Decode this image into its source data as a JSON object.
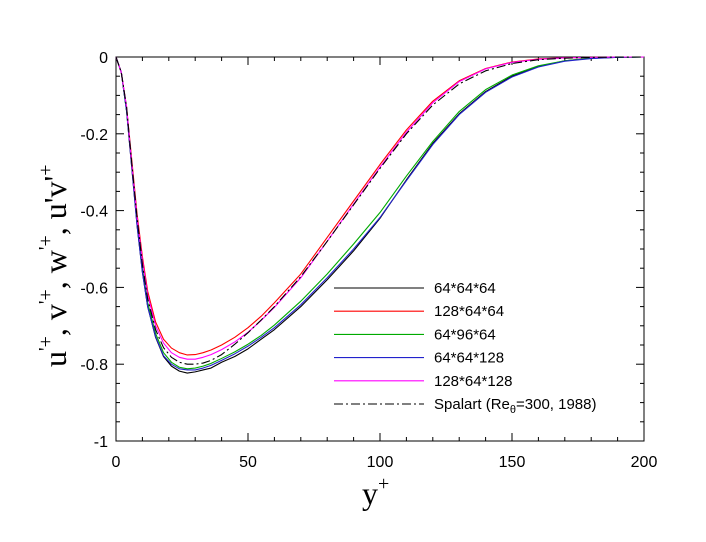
{
  "chart_data": {
    "type": "line",
    "title": "",
    "xlabel": {
      "base": "y",
      "sup": "+"
    },
    "ylabel": {
      "parts": [
        {
          "text": "u",
          "sup": "'+"
        },
        {
          "text": ", v",
          "sup": "'+"
        },
        {
          "text": ", w",
          "sup": "'+"
        },
        {
          "text": ", u'v'",
          "sup": "+"
        }
      ]
    },
    "xlim": [
      0,
      200
    ],
    "ylim": [
      -1,
      0
    ],
    "x_ticks": [
      0,
      50,
      100,
      150,
      200
    ],
    "y_ticks": [
      0,
      -0.2,
      -0.4,
      -0.6,
      -0.8,
      -1
    ],
    "x_tick_labels": [
      "0",
      "50",
      "100",
      "150",
      "200"
    ],
    "y_tick_labels": [
      "0",
      "-0.2",
      "-0.4",
      "-0.6",
      "-0.8",
      "-1"
    ],
    "grid": false,
    "legend_position": "center-right",
    "series": [
      {
        "name": "64*64*64",
        "color": "#000000",
        "dash": "solid",
        "x": [
          0,
          2,
          4,
          6,
          8,
          10,
          12,
          15,
          18,
          21,
          24,
          27,
          30,
          33,
          36,
          40,
          45,
          50,
          55,
          60,
          70,
          80,
          90,
          100,
          110,
          120,
          130,
          140,
          150,
          160,
          170,
          180,
          190,
          200
        ],
        "y": [
          0,
          -0.04,
          -0.14,
          -0.29,
          -0.44,
          -0.56,
          -0.65,
          -0.73,
          -0.78,
          -0.805,
          -0.818,
          -0.823,
          -0.82,
          -0.815,
          -0.81,
          -0.795,
          -0.78,
          -0.76,
          -0.735,
          -0.71,
          -0.65,
          -0.58,
          -0.505,
          -0.42,
          -0.32,
          -0.225,
          -0.148,
          -0.09,
          -0.05,
          -0.025,
          -0.01,
          -0.003,
          -0.001,
          0
        ]
      },
      {
        "name": "128*64*64",
        "color": "#ff0000",
        "dash": "solid",
        "x": [
          0,
          2,
          4,
          6,
          8,
          10,
          12,
          15,
          18,
          21,
          24,
          27,
          30,
          33,
          36,
          40,
          45,
          50,
          55,
          60,
          70,
          80,
          90,
          100,
          110,
          120,
          130,
          140,
          150,
          160,
          170,
          180,
          190,
          200
        ],
        "y": [
          0,
          -0.04,
          -0.13,
          -0.27,
          -0.41,
          -0.52,
          -0.61,
          -0.69,
          -0.735,
          -0.758,
          -0.77,
          -0.776,
          -0.775,
          -0.77,
          -0.763,
          -0.75,
          -0.73,
          -0.705,
          -0.675,
          -0.64,
          -0.565,
          -0.47,
          -0.375,
          -0.28,
          -0.19,
          -0.115,
          -0.062,
          -0.03,
          -0.013,
          -0.005,
          -0.002,
          -0.001,
          0,
          0
        ]
      },
      {
        "name": "64*96*64",
        "color": "#00aa00",
        "dash": "solid",
        "x": [
          0,
          2,
          4,
          6,
          8,
          10,
          12,
          15,
          18,
          21,
          24,
          27,
          30,
          33,
          36,
          40,
          45,
          50,
          55,
          60,
          70,
          80,
          90,
          100,
          110,
          120,
          130,
          140,
          150,
          160,
          170,
          180,
          190,
          200
        ],
        "y": [
          0,
          -0.04,
          -0.14,
          -0.28,
          -0.43,
          -0.55,
          -0.64,
          -0.72,
          -0.77,
          -0.795,
          -0.808,
          -0.812,
          -0.81,
          -0.805,
          -0.798,
          -0.785,
          -0.768,
          -0.748,
          -0.725,
          -0.698,
          -0.636,
          -0.565,
          -0.487,
          -0.405,
          -0.31,
          -0.22,
          -0.142,
          -0.085,
          -0.047,
          -0.023,
          -0.01,
          -0.003,
          -0.001,
          0
        ]
      },
      {
        "name": "64*64*128",
        "color": "#2222cc",
        "dash": "solid",
        "x": [
          0,
          2,
          4,
          6,
          8,
          10,
          12,
          15,
          18,
          21,
          24,
          27,
          30,
          33,
          36,
          40,
          45,
          50,
          55,
          60,
          70,
          80,
          90,
          100,
          110,
          120,
          130,
          140,
          150,
          160,
          170,
          180,
          190,
          200
        ],
        "y": [
          0,
          -0.04,
          -0.14,
          -0.29,
          -0.44,
          -0.56,
          -0.65,
          -0.728,
          -0.778,
          -0.8,
          -0.812,
          -0.815,
          -0.815,
          -0.81,
          -0.803,
          -0.79,
          -0.773,
          -0.753,
          -0.73,
          -0.705,
          -0.645,
          -0.575,
          -0.5,
          -0.418,
          -0.322,
          -0.228,
          -0.15,
          -0.092,
          -0.052,
          -0.026,
          -0.011,
          -0.004,
          -0.001,
          0
        ]
      },
      {
        "name": "128*64*128",
        "color": "#ff00ff",
        "dash": "solid",
        "x": [
          0,
          2,
          4,
          6,
          8,
          10,
          12,
          15,
          18,
          21,
          24,
          27,
          30,
          33,
          36,
          40,
          45,
          50,
          55,
          60,
          70,
          80,
          90,
          100,
          110,
          120,
          130,
          140,
          150,
          160,
          170,
          180,
          190,
          200
        ],
        "y": [
          0,
          -0.04,
          -0.13,
          -0.28,
          -0.42,
          -0.53,
          -0.62,
          -0.7,
          -0.745,
          -0.77,
          -0.782,
          -0.787,
          -0.787,
          -0.782,
          -0.775,
          -0.762,
          -0.742,
          -0.717,
          -0.686,
          -0.652,
          -0.575,
          -0.48,
          -0.383,
          -0.287,
          -0.196,
          -0.119,
          -0.064,
          -0.031,
          -0.014,
          -0.006,
          -0.002,
          -0.001,
          0,
          0
        ]
      },
      {
        "name": "Spalart (Reθ=300, 1988)",
        "legend_parts": {
          "pre": "Spalart (Re",
          "sub": "θ",
          "post": "=300, 1988)"
        },
        "color": "#000000",
        "dash": "dashdot",
        "x": [
          0,
          2,
          4,
          6,
          8,
          10,
          12,
          15,
          18,
          21,
          24,
          27,
          30,
          33,
          36,
          40,
          45,
          50,
          55,
          60,
          70,
          80,
          90,
          100,
          110,
          120,
          130,
          140,
          150,
          160,
          170,
          180,
          190,
          200
        ],
        "y": [
          0,
          -0.04,
          -0.13,
          -0.28,
          -0.42,
          -0.54,
          -0.63,
          -0.71,
          -0.757,
          -0.782,
          -0.795,
          -0.8,
          -0.8,
          -0.797,
          -0.79,
          -0.775,
          -0.748,
          -0.718,
          -0.685,
          -0.65,
          -0.572,
          -0.48,
          -0.385,
          -0.29,
          -0.2,
          -0.125,
          -0.07,
          -0.036,
          -0.017,
          -0.007,
          -0.003,
          -0.001,
          0,
          0
        ]
      }
    ]
  }
}
